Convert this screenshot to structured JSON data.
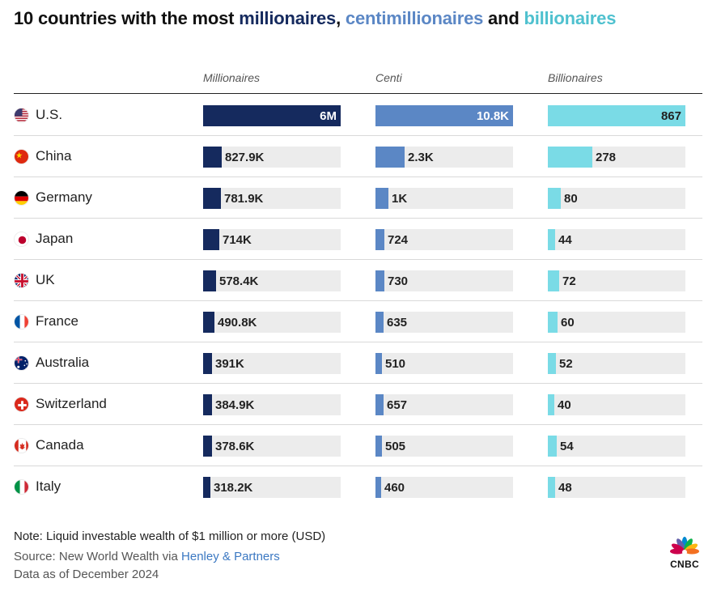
{
  "title": {
    "part1": "10 countries with the most ",
    "millionaires": "millionaires",
    "sep": ", ",
    "centi": "centimillionaires",
    "and": " and ",
    "billionaires": "billionaires"
  },
  "columns": {
    "millionaires": "Millionaires",
    "centi": "Centi",
    "billionaires": "Billionaires"
  },
  "colors": {
    "millionaires": "#152a5e",
    "centi": "#5b87c5",
    "billionaires": "#7adbe6",
    "track": "#ececec"
  },
  "chart_data": {
    "type": "bar",
    "categories": [
      "U.S.",
      "China",
      "Germany",
      "Japan",
      "UK",
      "France",
      "Australia",
      "Switzerland",
      "Canada",
      "Italy"
    ],
    "flags": [
      "us-flag-icon",
      "china-flag-icon",
      "germany-flag-icon",
      "japan-flag-icon",
      "uk-flag-icon",
      "france-flag-icon",
      "australia-flag-icon",
      "switzerland-flag-icon",
      "canada-flag-icon",
      "italy-flag-icon"
    ],
    "series": [
      {
        "name": "Millionaires",
        "values": [
          6000000,
          827900,
          781900,
          714000,
          578400,
          490800,
          391000,
          384900,
          378600,
          318200
        ],
        "labels": [
          "6M",
          "827.9K",
          "781.9K",
          "714K",
          "578.4K",
          "490.8K",
          "391K",
          "384.9K",
          "378.6K",
          "318.2K"
        ]
      },
      {
        "name": "Centi",
        "values": [
          10800,
          2300,
          1000,
          724,
          730,
          635,
          510,
          657,
          505,
          460
        ],
        "labels": [
          "10.8K",
          "2.3K",
          "1K",
          "724",
          "730",
          "635",
          "510",
          "657",
          "505",
          "460"
        ]
      },
      {
        "name": "Billionaires",
        "values": [
          867,
          278,
          80,
          44,
          72,
          60,
          52,
          40,
          54,
          48
        ],
        "labels": [
          "867",
          "278",
          "80",
          "44",
          "72",
          "60",
          "52",
          "40",
          "54",
          "48"
        ]
      }
    ]
  },
  "footer": {
    "note": "Note: Liquid investable wealth of $1 million or more (USD)",
    "source_prefix": "Source: New World Wealth via ",
    "source_link": "Henley & Partners",
    "date": "Data as of December 2024"
  },
  "logo": {
    "text": "CNBC"
  }
}
